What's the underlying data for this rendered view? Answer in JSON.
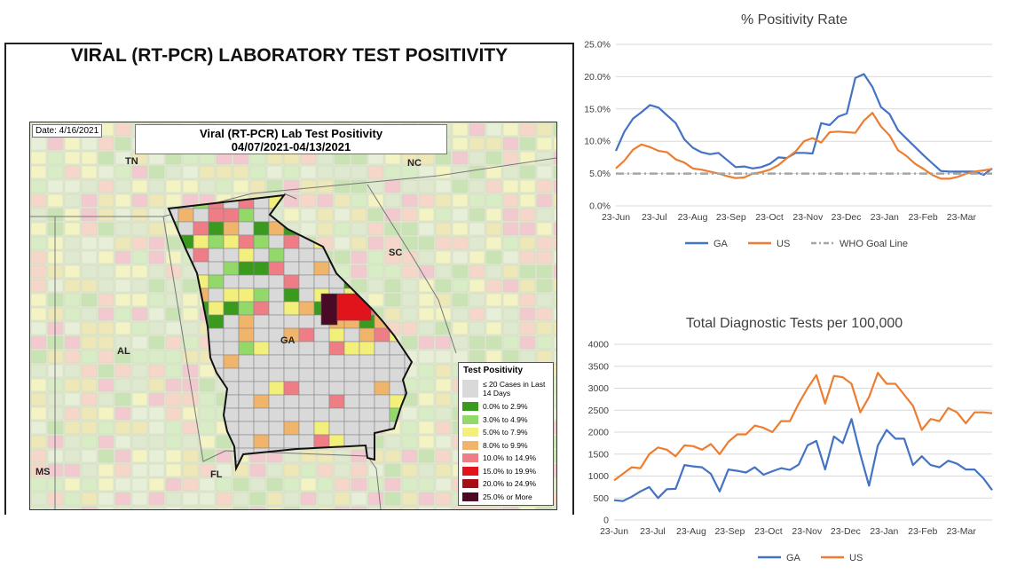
{
  "panel_title": "VIRAL (RT-PCR) LABORATORY TEST POSITIVITY",
  "map": {
    "date": "Date: 4/16/2021",
    "title": "Viral (RT-PCR) Lab Test Positivity",
    "subtitle": "04/07/2021-04/13/2021",
    "state_labels": [
      "TN",
      "NC",
      "SC",
      "GA",
      "AL",
      "MS",
      "FL"
    ],
    "legend": {
      "title": "Test Positivity",
      "items": [
        {
          "label": "≤ 20 Cases in Last 14 Days",
          "color": "#d9d9d9"
        },
        {
          "label": "0.0% to 2.9%",
          "color": "#3a9a1e"
        },
        {
          "label": "3.0% to 4.9%",
          "color": "#93d96a"
        },
        {
          "label": "5.0% to 7.9%",
          "color": "#f2f07a"
        },
        {
          "label": "8.0% to 9.9%",
          "color": "#f0b56a"
        },
        {
          "label": "10.0% to 14.9%",
          "color": "#ef7d85"
        },
        {
          "label": "15.0% to 19.9%",
          "color": "#e2141b"
        },
        {
          "label": "20.0% to 24.9%",
          "color": "#a50f15"
        },
        {
          "label": "25.0% or More",
          "color": "#4a0a25"
        }
      ]
    }
  },
  "chart_data": [
    {
      "type": "line",
      "title": "% Positivity Rate",
      "x_ticks": [
        "23-Jun",
        "23-Jul",
        "23-Aug",
        "23-Sep",
        "23-Oct",
        "23-Nov",
        "23-Dec",
        "23-Jan",
        "23-Feb",
        "23-Mar"
      ],
      "y_ticks": [
        "0.0%",
        "5.0%",
        "10.0%",
        "15.0%",
        "20.0%",
        "25.0%"
      ],
      "ylim": [
        0,
        25
      ],
      "grid": true,
      "legend_position": "bottom",
      "series": [
        {
          "name": "GA",
          "color": "#4472c4",
          "values": [
            8.5,
            11.5,
            13.5,
            14.5,
            15.6,
            15.2,
            14.0,
            12.8,
            10.3,
            9.0,
            8.3,
            8.0,
            8.2,
            7.1,
            6.0,
            6.1,
            5.8,
            6.0,
            6.5,
            7.5,
            7.4,
            8.2,
            8.2,
            8.1,
            12.8,
            12.5,
            13.8,
            14.3,
            19.8,
            20.4,
            18.4,
            15.3,
            14.2,
            11.7,
            10.4,
            9.1,
            7.8,
            6.6,
            5.4,
            5.3,
            5.3,
            5.3,
            5.3,
            4.8,
            5.8
          ]
        },
        {
          "name": "US",
          "color": "#ed7d31",
          "values": [
            5.8,
            7.0,
            8.7,
            9.5,
            9.1,
            8.5,
            8.3,
            7.2,
            6.7,
            5.8,
            5.6,
            5.3,
            5.0,
            4.6,
            4.3,
            4.4,
            5.0,
            5.2,
            5.6,
            6.3,
            7.4,
            8.4,
            10.0,
            10.5,
            9.8,
            11.4,
            11.5,
            11.4,
            11.3,
            13.2,
            14.4,
            12.3,
            10.9,
            8.6,
            7.7,
            6.5,
            5.7,
            4.8,
            4.2,
            4.2,
            4.5,
            5.0,
            5.3,
            5.5,
            5.7
          ]
        },
        {
          "name": "WHO Goal Line",
          "color": "#a5a5a5",
          "values": [
            5,
            5
          ]
        }
      ]
    },
    {
      "type": "line",
      "title": "Total Diagnostic Tests per 100,000",
      "x_ticks": [
        "23-Jun",
        "23-Jul",
        "23-Aug",
        "23-Sep",
        "23-Oct",
        "23-Nov",
        "23-Dec",
        "23-Jan",
        "23-Feb",
        "23-Mar"
      ],
      "y_ticks": [
        "0",
        "500",
        "1000",
        "1500",
        "2000",
        "2500",
        "3000",
        "3500",
        "4000"
      ],
      "ylim": [
        0,
        4000
      ],
      "grid": true,
      "legend_position": "bottom",
      "series": [
        {
          "name": "GA",
          "color": "#4472c4",
          "values": [
            450,
            430,
            530,
            650,
            750,
            500,
            700,
            710,
            1250,
            1220,
            1200,
            1050,
            650,
            1150,
            1120,
            1080,
            1200,
            1030,
            1110,
            1180,
            1140,
            1260,
            1700,
            1800,
            1150,
            1900,
            1750,
            2300,
            1500,
            780,
            1700,
            2050,
            1850,
            1850,
            1250,
            1450,
            1250,
            1200,
            1350,
            1280,
            1150,
            1150,
            950,
            680
          ]
        },
        {
          "name": "US",
          "color": "#ed7d31",
          "values": [
            900,
            1050,
            1200,
            1180,
            1500,
            1650,
            1600,
            1450,
            1700,
            1680,
            1600,
            1730,
            1500,
            1780,
            1950,
            1950,
            2150,
            2100,
            2000,
            2250,
            2250,
            2650,
            3000,
            3300,
            2650,
            3280,
            3250,
            3100,
            2450,
            2800,
            3350,
            3100,
            3100,
            2850,
            2600,
            2050,
            2300,
            2250,
            2550,
            2450,
            2200,
            2450,
            2450,
            2430
          ]
        }
      ]
    }
  ]
}
